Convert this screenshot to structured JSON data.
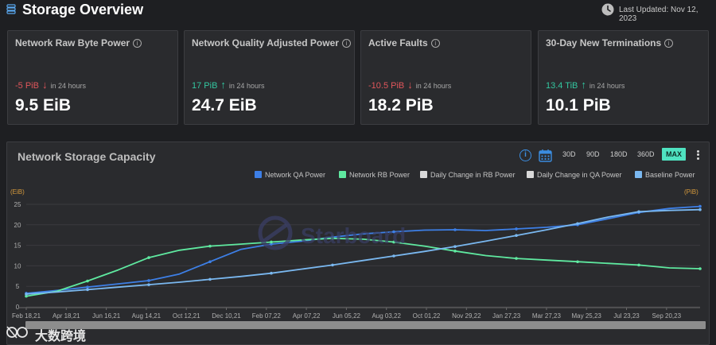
{
  "header": {
    "title": "Storage Overview",
    "icon": "storage-icon",
    "updated_label": "Last Updated: Nov 12, 2023"
  },
  "cards": [
    {
      "title": "Network Raw Byte Power",
      "change": "-5 PiB",
      "direction": "down",
      "period": "in 24 hours",
      "value": "9.5 EiB"
    },
    {
      "title": "Network Quality Adjusted Power",
      "change": "17 PiB",
      "direction": "up",
      "period": "in 24 hours",
      "value": "24.7 EiB"
    },
    {
      "title": "Active Faults",
      "change": "-10.5 PiB",
      "direction": "down",
      "period": "in 24 hours",
      "value": "18.2 PiB"
    },
    {
      "title": "30-Day New Terminations",
      "change": "13.4 TiB",
      "direction": "up",
      "period": "in 24 hours",
      "value": "10.1 PiB"
    }
  ],
  "panel": {
    "title": "Network Storage Capacity",
    "ranges": [
      "30D",
      "90D",
      "180D",
      "360D",
      "MAX"
    ],
    "active_range": "MAX"
  },
  "legend": [
    {
      "label": "Network QA Power",
      "color": "#3d7fe6"
    },
    {
      "label": "Network RB Power",
      "color": "#5fe9a0"
    },
    {
      "label": "Daily Change in RB Power",
      "color": "#d9d9d9"
    },
    {
      "label": "Daily Change in QA Power",
      "color": "#d9d9d9"
    },
    {
      "label": "Baseline Power",
      "color": "#7ab8f0"
    }
  ],
  "watermark": "Starboard",
  "brand": {
    "text": "大数跨境"
  },
  "colors": {
    "qa": "#3d7fe6",
    "rb": "#5fe9a0",
    "baseline": "#7ab8f0",
    "accent": "#4fe3c1",
    "down": "#e0565b",
    "up": "#33c7a0"
  },
  "chart_data": {
    "type": "line",
    "y_left_label": "(EiB)",
    "y_right_label": "(PiB)",
    "ylim": [
      0,
      25
    ],
    "y_ticks": [
      0,
      5,
      10,
      15,
      20,
      25
    ],
    "grid": true,
    "legend_position": "top-right",
    "x_ticks": [
      "Feb 18,21",
      "Apr 18,21",
      "Jun 16,21",
      "Aug 14,21",
      "Oct 12,21",
      "Dec 10,21",
      "Feb 07,22",
      "Apr 07,22",
      "Jun 05,22",
      "Aug 03,22",
      "Oct 01,22",
      "Nov 29,22",
      "Jan 27,23",
      "Mar 27,23",
      "May 25,23",
      "Jul 23,23",
      "Sep 20,23"
    ],
    "series": [
      {
        "name": "Network QA Power",
        "values": [
          3.3,
          4.0,
          4.8,
          5.6,
          6.4,
          8.0,
          11.0,
          14.0,
          15.3,
          16.0,
          17.0,
          17.8,
          18.3,
          18.7,
          18.8,
          18.6,
          19.0,
          19.4,
          20.0,
          21.5,
          23.0,
          24.0,
          24.5
        ]
      },
      {
        "name": "Network RB Power",
        "values": [
          2.6,
          3.8,
          6.3,
          9.0,
          12.0,
          13.8,
          14.8,
          15.3,
          15.8,
          16.3,
          16.7,
          16.5,
          15.8,
          14.8,
          13.6,
          12.5,
          11.8,
          11.4,
          11.0,
          10.6,
          10.2,
          9.5,
          9.3
        ]
      },
      {
        "name": "Baseline Power",
        "values": [
          3.1,
          3.6,
          4.2,
          4.8,
          5.4,
          6.0,
          6.7,
          7.4,
          8.2,
          9.2,
          10.2,
          11.3,
          12.4,
          13.5,
          14.7,
          16.0,
          17.4,
          18.8,
          20.3,
          21.9,
          23.2,
          23.5,
          23.7
        ]
      }
    ]
  }
}
